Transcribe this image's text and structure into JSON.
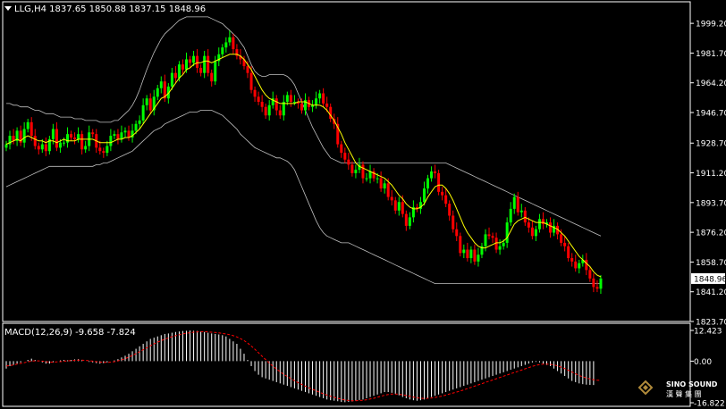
{
  "window": {
    "symbol_header": "LLG,H4  1837.65 1850.88 1837.15 1848.96",
    "macd_header": "MACD(12,26,9) -9.658 -7.824"
  },
  "price_axis": {
    "ticks": [
      "1999.20",
      "1981.70",
      "1964.20",
      "1946.70",
      "1928.70",
      "1911.20",
      "1893.70",
      "1876.20",
      "1858.70",
      "1841.20",
      "1823.70"
    ],
    "current_price": "1848.96"
  },
  "macd_axis": {
    "ticks": [
      "12.423",
      "0.00",
      "-16.822"
    ]
  },
  "logo": {
    "text_en": "SINO SOUND",
    "text_cn": "漢 聲 集 團"
  },
  "colors": {
    "background": "#000000",
    "axis": "#ffffff",
    "bull_candle": "#00ff00",
    "bear_candle": "#ff0000",
    "ma_line": "#ffff00",
    "bands": "#c0c0c0",
    "macd_hist": "#ffffff",
    "macd_signal": "#ff0000"
  },
  "chart_data": [
    {
      "type": "candlestick",
      "symbol": "LLG",
      "timeframe": "H4",
      "ohlc_last": {
        "open": 1837.65,
        "high": 1850.88,
        "low": 1837.15,
        "close": 1848.96
      },
      "ylim": [
        1823.7,
        2004
      ],
      "close": [
        1928,
        1933,
        1930,
        1936,
        1929,
        1937,
        1941,
        1933,
        1927,
        1925,
        1928,
        1924,
        1931,
        1937,
        1926,
        1929,
        1929,
        1934,
        1932,
        1931,
        1934,
        1925,
        1927,
        1935,
        1934,
        1926,
        1924,
        1923,
        1927,
        1933,
        1934,
        1931,
        1935,
        1936,
        1932,
        1936,
        1940,
        1942,
        1951,
        1955,
        1948,
        1956,
        1961,
        1965,
        1955,
        1962,
        1970,
        1967,
        1975,
        1972,
        1978,
        1976,
        1980,
        1973,
        1970,
        1980,
        1970,
        1965,
        1977,
        1981,
        1985,
        1988,
        1991,
        1984,
        1980,
        1978,
        1974,
        1970,
        1960,
        1956,
        1953,
        1950,
        1945,
        1951,
        1955,
        1948,
        1945,
        1953,
        1957,
        1953,
        1953,
        1952,
        1948,
        1954,
        1950,
        1951,
        1955,
        1958,
        1952,
        1950,
        1943,
        1940,
        1928,
        1923,
        1919,
        1916,
        1911,
        1913,
        1916,
        1908,
        1908,
        1912,
        1908,
        1908,
        1902,
        1905,
        1897,
        1895,
        1889,
        1894,
        1887,
        1880,
        1885,
        1891,
        1890,
        1894,
        1902,
        1908,
        1912,
        1911,
        1900,
        1898,
        1893,
        1886,
        1878,
        1874,
        1864,
        1866,
        1861,
        1866,
        1859,
        1863,
        1868,
        1875,
        1874,
        1873,
        1866,
        1868,
        1870,
        1882,
        1890,
        1897,
        1888,
        1889,
        1882,
        1879,
        1874,
        1878,
        1884,
        1881,
        1882,
        1876,
        1880,
        1875,
        1870,
        1868,
        1861,
        1859,
        1855,
        1858,
        1860,
        1854,
        1849,
        1844,
        1843,
        1849
      ],
      "ma": [
        1928,
        1929,
        1930,
        1931,
        1930,
        1932,
        1933,
        1932,
        1931,
        1930,
        1930,
        1929,
        1930,
        1930,
        1929,
        1930,
        1931,
        1930,
        1930,
        1930,
        1931,
        1931,
        1931,
        1931,
        1931,
        1930,
        1929,
        1929,
        1929,
        1929,
        1930,
        1931,
        1931,
        1932,
        1932,
        1933,
        1935,
        1937,
        1940,
        1943,
        1946,
        1949,
        1952,
        1955,
        1956,
        1958,
        1961,
        1964,
        1967,
        1969,
        1972,
        1973,
        1975,
        1976,
        1976,
        1977,
        1977,
        1976,
        1977,
        1978,
        1979,
        1980,
        1981,
        1981,
        1981,
        1980,
        1978,
        1975,
        1972,
        1968,
        1964,
        1960,
        1957,
        1955,
        1954,
        1953,
        1952,
        1952,
        1952,
        1952,
        1952,
        1953,
        1953,
        1953,
        1952,
        1951,
        1951,
        1951,
        1950,
        1948,
        1945,
        1942,
        1938,
        1934,
        1929,
        1925,
        1921,
        1917,
        1915,
        1914,
        1913,
        1912,
        1911,
        1910,
        1909,
        1908,
        1906,
        1904,
        1901,
        1898,
        1896,
        1893,
        1891,
        1890,
        1890,
        1891,
        1893,
        1897,
        1900,
        1903,
        1904,
        1904,
        1902,
        1899,
        1895,
        1890,
        1885,
        1880,
        1876,
        1873,
        1870,
        1868,
        1867,
        1867,
        1868,
        1869,
        1870,
        1870,
        1871,
        1873,
        1877,
        1881,
        1883,
        1884,
        1885,
        1884,
        1883,
        1882,
        1882,
        1882,
        1881,
        1880,
        1879,
        1878,
        1876,
        1874,
        1871,
        1868,
        1865,
        1862,
        1860,
        1858,
        1856,
        1853,
        1851,
        1850
      ],
      "bb_upper": [
        1952,
        1952,
        1951,
        1951,
        1950,
        1950,
        1950,
        1949,
        1948,
        1948,
        1947,
        1946,
        1946,
        1946,
        1945,
        1944,
        1944,
        1944,
        1944,
        1943,
        1943,
        1943,
        1942,
        1942,
        1942,
        1942,
        1941,
        1941,
        1941,
        1941,
        1942,
        1942,
        1944,
        1946,
        1948,
        1951,
        1955,
        1960,
        1966,
        1972,
        1977,
        1982,
        1986,
        1990,
        1993,
        1995,
        1997,
        1999,
        2001,
        2002,
        2003,
        2003,
        2003,
        2003,
        2003,
        2003,
        2003,
        2002,
        2001,
        2000,
        1999,
        1997,
        1995,
        1993,
        1991,
        1988,
        1985,
        1980,
        1975,
        1971,
        1969,
        1968,
        1968,
        1969,
        1969,
        1969,
        1969,
        1969,
        1968,
        1966,
        1963,
        1958,
        1953,
        1948,
        1943,
        1938,
        1934,
        1930,
        1926,
        1923,
        1920,
        1919,
        1918,
        1917,
        1917,
        1917,
        1917,
        1917,
        1917,
        1917,
        1917,
        1917,
        1917,
        1917,
        1917,
        1917,
        1917,
        1917,
        1917,
        1917,
        1917,
        1917,
        1917,
        1917,
        1917,
        1917,
        1917,
        1917,
        1917,
        1917,
        1917,
        1917,
        1917,
        1916,
        1915,
        1914,
        1913,
        1912,
        1911,
        1910,
        1909,
        1908,
        1907,
        1906,
        1905,
        1904,
        1903,
        1902,
        1901,
        1900,
        1899,
        1898,
        1897,
        1896,
        1895,
        1894,
        1893,
        1892,
        1891,
        1890,
        1889,
        1888,
        1887,
        1886,
        1885,
        1884,
        1883,
        1882,
        1881,
        1880,
        1879,
        1878,
        1877,
        1876,
        1875,
        1874
      ],
      "bb_lower": [
        1903,
        1904,
        1905,
        1906,
        1907,
        1908,
        1909,
        1910,
        1911,
        1912,
        1913,
        1914,
        1915,
        1915,
        1915,
        1915,
        1915,
        1915,
        1915,
        1915,
        1915,
        1915,
        1915,
        1915,
        1915,
        1916,
        1916,
        1917,
        1917,
        1918,
        1919,
        1920,
        1921,
        1922,
        1923,
        1924,
        1926,
        1928,
        1930,
        1932,
        1934,
        1936,
        1937,
        1938,
        1940,
        1941,
        1942,
        1943,
        1944,
        1945,
        1946,
        1947,
        1947,
        1947,
        1948,
        1948,
        1948,
        1948,
        1947,
        1946,
        1945,
        1943,
        1941,
        1939,
        1937,
        1934,
        1932,
        1930,
        1928,
        1926,
        1925,
        1924,
        1923,
        1922,
        1921,
        1920,
        1920,
        1919,
        1918,
        1916,
        1913,
        1908,
        1903,
        1898,
        1893,
        1888,
        1883,
        1879,
        1876,
        1874,
        1873,
        1872,
        1871,
        1870,
        1870,
        1870,
        1869,
        1868,
        1867,
        1866,
        1865,
        1864,
        1863,
        1862,
        1861,
        1860,
        1859,
        1858,
        1857,
        1856,
        1855,
        1854,
        1853,
        1852,
        1851,
        1850,
        1849,
        1848,
        1847,
        1846,
        1846,
        1846,
        1846,
        1846,
        1846,
        1846,
        1846,
        1846,
        1846,
        1846,
        1846,
        1846,
        1846,
        1846,
        1846,
        1846,
        1846,
        1846,
        1846,
        1846,
        1846,
        1846,
        1846,
        1846,
        1846,
        1846,
        1846,
        1846,
        1846,
        1846,
        1846,
        1846,
        1846,
        1846,
        1846,
        1846,
        1846,
        1846,
        1846,
        1846,
        1846,
        1846,
        1846,
        1846,
        1846,
        1846
      ]
    },
    {
      "type": "bar",
      "name": "MACD(12,26,9)",
      "ylim": [
        -16.822,
        12.423
      ],
      "values": [
        -3,
        -2,
        -1.5,
        -1,
        -0.5,
        0,
        0.5,
        1,
        0.5,
        0,
        -0.5,
        -1,
        -1,
        -0.5,
        0,
        0.3,
        0.5,
        0.3,
        0.5,
        0.7,
        0.8,
        0.5,
        0,
        -0.3,
        -0.5,
        -0.8,
        -1,
        -0.8,
        -0.5,
        0,
        0.3,
        0.8,
        1.5,
        2.2,
        3,
        4,
        5,
        6,
        7,
        8,
        9,
        9.5,
        10,
        10.5,
        11,
        11.2,
        11.5,
        11.8,
        12,
        12.2,
        12.3,
        12.4,
        12.3,
        12.2,
        12,
        11.8,
        11.5,
        11.2,
        11,
        10.8,
        10.5,
        10,
        9,
        8,
        7,
        5,
        3,
        0.5,
        -2,
        -4,
        -5.5,
        -6.5,
        -7,
        -7.5,
        -8,
        -8.5,
        -9,
        -9.5,
        -10,
        -10.5,
        -11,
        -11.5,
        -12,
        -12.5,
        -13,
        -13.5,
        -14,
        -14.5,
        -15,
        -15.5,
        -15.8,
        -16,
        -16.2,
        -16.5,
        -16.6,
        -16.5,
        -16.3,
        -16,
        -15.7,
        -15.5,
        -15,
        -14.5,
        -14,
        -13.5,
        -13,
        -12.5,
        -12.5,
        -12.8,
        -13.2,
        -13.8,
        -14.5,
        -15,
        -15.5,
        -15.8,
        -16,
        -15.8,
        -15.5,
        -15,
        -14.5,
        -14,
        -13.5,
        -13,
        -12.5,
        -12,
        -11.5,
        -11,
        -10.5,
        -10,
        -9.5,
        -9,
        -8.5,
        -8,
        -7.5,
        -7,
        -6.5,
        -6,
        -5.5,
        -5,
        -4.5,
        -4,
        -3.5,
        -3,
        -2.5,
        -2,
        -1.5,
        -1,
        -0.5,
        -0.3,
        -0.5,
        -1,
        -1.5,
        -2,
        -3,
        -4,
        -5,
        -6,
        -7,
        -8,
        -8.5,
        -9,
        -9.3,
        -9.5,
        -9.6,
        -9.658
      ],
      "signal": [
        -2,
        -1.8,
        -1.5,
        -1.2,
        -0.9,
        -0.6,
        -0.3,
        0,
        0.1,
        0.1,
        0,
        -0.2,
        -0.4,
        -0.4,
        -0.3,
        -0.2,
        0,
        0.1,
        0.2,
        0.3,
        0.4,
        0.4,
        0.3,
        0.2,
        0,
        -0.2,
        -0.4,
        -0.5,
        -0.5,
        -0.4,
        -0.2,
        0.1,
        0.5,
        1,
        1.6,
        2.3,
        3,
        3.8,
        4.6,
        5.4,
        6.2,
        7,
        7.7,
        8.3,
        8.9,
        9.4,
        9.9,
        10.3,
        10.7,
        11,
        11.3,
        11.5,
        11.7,
        11.8,
        11.9,
        11.9,
        11.8,
        11.7,
        11.6,
        11.4,
        11.2,
        11,
        10.7,
        10.3,
        9.8,
        9.1,
        8.3,
        7.3,
        6.1,
        4.8,
        3.4,
        2,
        0.6,
        -0.8,
        -2,
        -3.2,
        -4.3,
        -5.3,
        -6.2,
        -7.1,
        -7.9,
        -8.7,
        -9.4,
        -10.1,
        -10.8,
        -11.4,
        -12,
        -12.6,
        -13.2,
        -13.7,
        -14.2,
        -14.6,
        -15,
        -15.4,
        -15.7,
        -15.9,
        -16,
        -16,
        -15.9,
        -15.8,
        -15.6,
        -15.3,
        -15,
        -14.6,
        -14.2,
        -13.8,
        -13.5,
        -13.3,
        -13.3,
        -13.4,
        -13.6,
        -13.9,
        -14.2,
        -14.5,
        -14.8,
        -15,
        -15.1,
        -15,
        -14.9,
        -14.7,
        -14.4,
        -14.1,
        -13.7,
        -13.3,
        -12.9,
        -12.5,
        -12.1,
        -11.6,
        -11.1,
        -10.6,
        -10.1,
        -9.6,
        -9.1,
        -8.6,
        -8.1,
        -7.6,
        -7.1,
        -6.6,
        -6.1,
        -5.6,
        -5.1,
        -4.6,
        -4.1,
        -3.6,
        -3.1,
        -2.6,
        -2.1,
        -1.7,
        -1.4,
        -1.2,
        -1.2,
        -1.3,
        -1.5,
        -1.9,
        -2.4,
        -3,
        -3.7,
        -4.4,
        -5.1,
        -5.8,
        -6.3,
        -6.8,
        -7.2,
        -7.5,
        -7.7,
        -7.824
      ]
    }
  ]
}
